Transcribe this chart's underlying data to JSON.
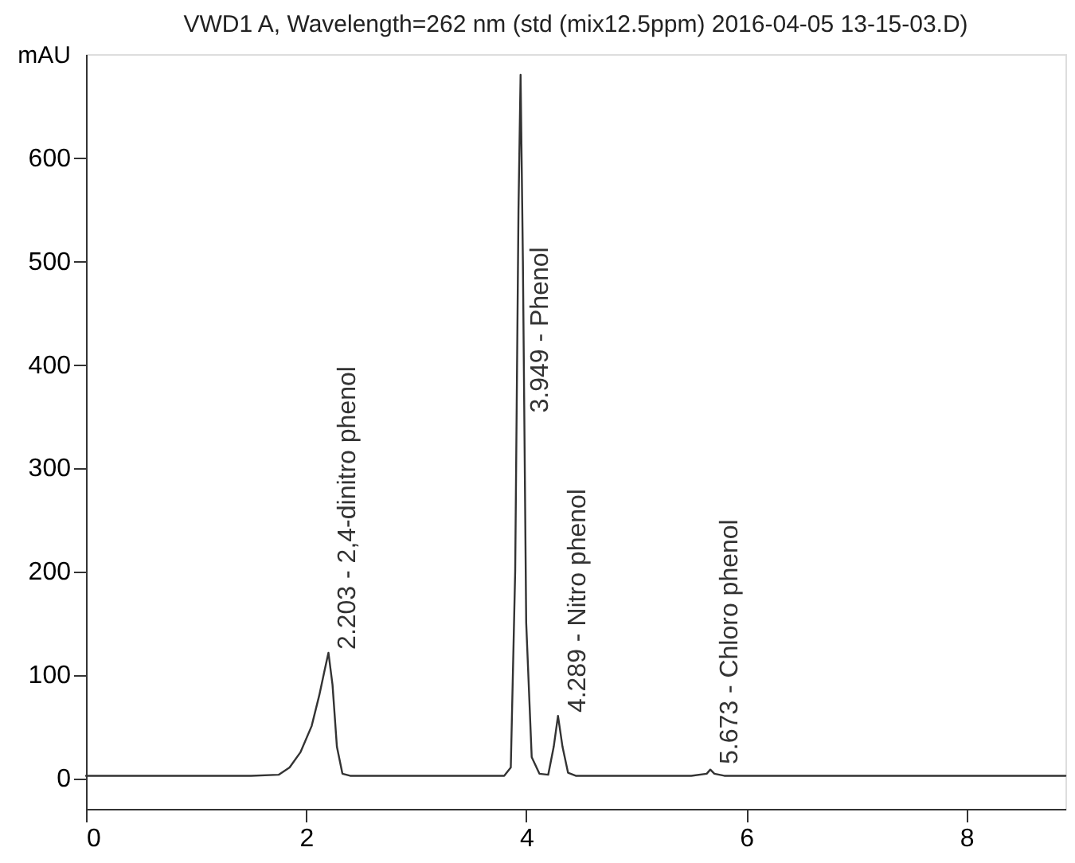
{
  "chart_data": {
    "type": "line",
    "title": "VWD1 A, Wavelength=262 nm (std (mix12.5ppm) 2016-04-05 13-15-03.D)",
    "ylabel": "mAU",
    "series": [
      {
        "color": "#333333",
        "x": [
          0,
          1.5,
          1.75,
          1.85,
          1.95,
          2.05,
          2.12,
          2.17,
          2.203,
          2.24,
          2.28,
          2.33,
          2.4,
          3.0,
          3.8,
          3.86,
          3.9,
          3.93,
          3.949,
          3.97,
          4.0,
          4.05,
          4.12,
          4.2,
          4.25,
          4.289,
          4.33,
          4.38,
          4.45,
          5.5,
          5.64,
          5.673,
          5.71,
          5.8,
          7,
          8.9
        ],
        "values": [
          2,
          2,
          3,
          10,
          25,
          50,
          80,
          105,
          121,
          90,
          30,
          4,
          2,
          2,
          2,
          10,
          200,
          550,
          680,
          500,
          150,
          20,
          4,
          3,
          30,
          60,
          30,
          5,
          2,
          2,
          4,
          8,
          4,
          2,
          2,
          2
        ]
      }
    ],
    "annotations": [
      {
        "text": "2.203 -  2,4-dinitro phenol",
        "x": 2.203,
        "y": 121
      },
      {
        "text": "3.949 - Phenol",
        "x": 3.949,
        "y": 350
      },
      {
        "text": "4.289 -  Nitro phenol",
        "x": 4.289,
        "y": 60
      },
      {
        "text": "5.673 -  Chloro phenol",
        "x": 5.673,
        "y": 10
      }
    ],
    "xlim": [
      0,
      8.9
    ],
    "xticks": [
      0,
      2,
      4,
      6,
      8
    ],
    "ylim": [
      -30,
      700
    ],
    "yticks": [
      0,
      100,
      200,
      300,
      400,
      500,
      600
    ],
    "grid": false,
    "marker": "none",
    "line_style": "solid"
  }
}
